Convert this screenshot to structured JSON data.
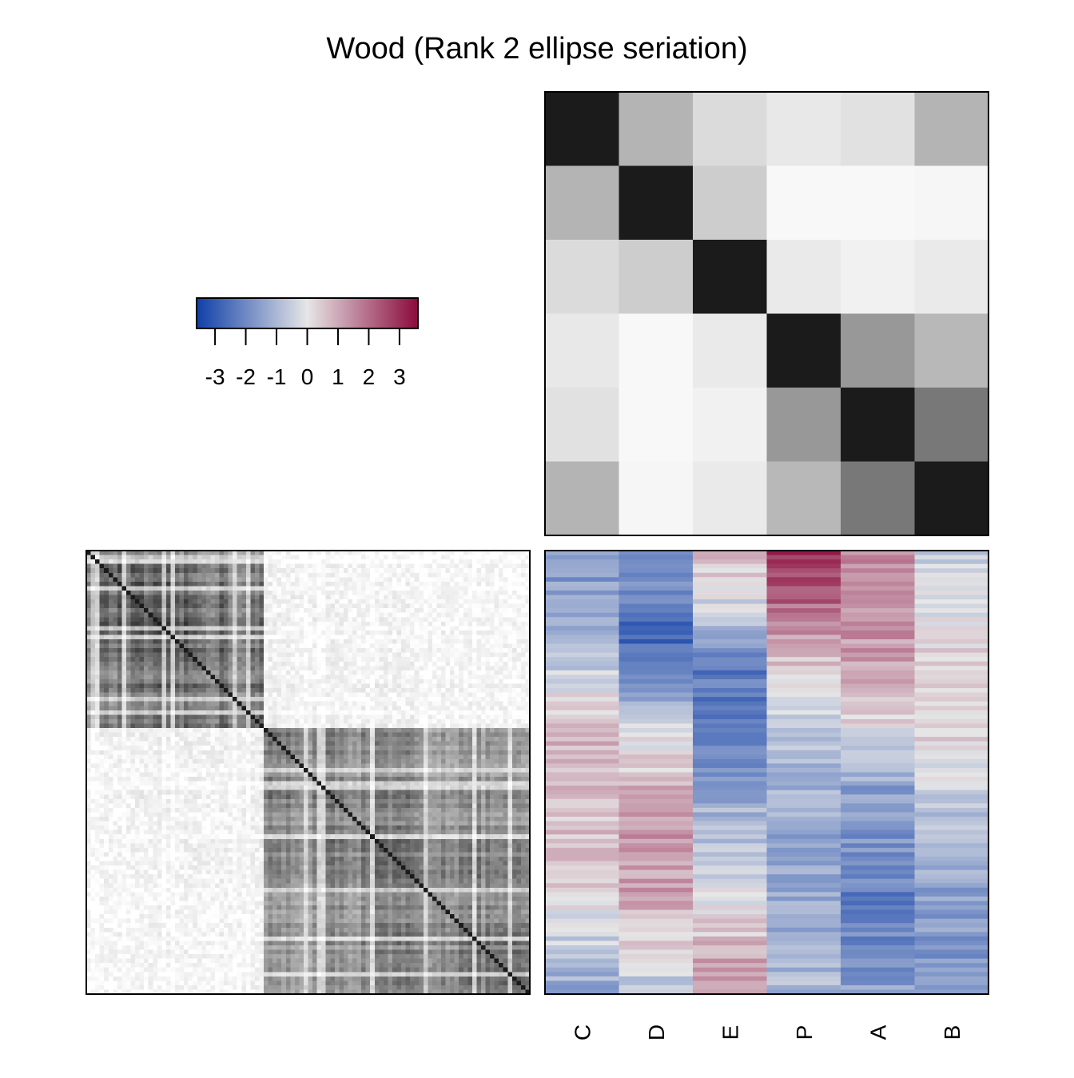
{
  "chart_data": [
    {
      "type": "heatmap",
      "panel": "variable-correlation",
      "title": "Wood (Rank 2 ellipse seriation)",
      "rows": [
        "C",
        "D",
        "E",
        "P",
        "A",
        "B"
      ],
      "columns": [
        "C",
        "D",
        "E",
        "P",
        "A",
        "B"
      ],
      "values": [
        [
          1.0,
          0.33,
          0.16,
          0.1,
          0.13,
          0.33
        ],
        [
          0.33,
          1.0,
          0.22,
          0.03,
          0.03,
          0.04
        ],
        [
          0.16,
          0.22,
          1.0,
          0.09,
          0.06,
          0.09
        ],
        [
          0.1,
          0.03,
          0.09,
          1.0,
          0.45,
          0.31
        ],
        [
          0.13,
          0.03,
          0.06,
          0.45,
          1.0,
          0.59
        ],
        [
          0.33,
          0.04,
          0.09,
          0.31,
          0.59,
          1.0
        ]
      ],
      "colorscale": "grayscale (white low, dark high)"
    },
    {
      "type": "heatmap",
      "panel": "observation-correlation",
      "n": 100,
      "blocks": [
        {
          "start": 0,
          "end": 40,
          "level": 0.7
        },
        {
          "start": 40,
          "end": 100,
          "level": 0.62
        }
      ],
      "off_block_level": 0.08,
      "colorscale": "grayscale (white low, dark high)"
    },
    {
      "type": "heatmap",
      "panel": "standardized-data",
      "columns": [
        "C",
        "D",
        "E",
        "P",
        "A",
        "B"
      ],
      "n_rows": 100,
      "profiles": {
        "C": [
          [
            0,
            -1.8
          ],
          [
            20,
            -1.2
          ],
          [
            40,
            0.9
          ],
          [
            60,
            0.6
          ],
          [
            80,
            0.2
          ],
          [
            100,
            -1.4
          ]
        ],
        "D": [
          [
            0,
            -1.5
          ],
          [
            20,
            -2.8
          ],
          [
            40,
            -0.3
          ],
          [
            60,
            1.3
          ],
          [
            80,
            1.1
          ],
          [
            100,
            -1.0
          ]
        ],
        "E": [
          [
            0,
            0.8
          ],
          [
            15,
            -0.6
          ],
          [
            25,
            -2.4
          ],
          [
            40,
            -2.2
          ],
          [
            60,
            -1.0
          ],
          [
            80,
            0.0
          ],
          [
            100,
            1.6
          ]
        ],
        "P": [
          [
            0,
            3.2
          ],
          [
            15,
            1.8
          ],
          [
            30,
            0.1
          ],
          [
            45,
            -0.8
          ],
          [
            70,
            -1.5
          ],
          [
            100,
            -1.0
          ]
        ],
        "A": [
          [
            0,
            1.5
          ],
          [
            25,
            1.2
          ],
          [
            40,
            0.0
          ],
          [
            55,
            -1.6
          ],
          [
            80,
            -2.2
          ],
          [
            100,
            -1.5
          ]
        ],
        "B": [
          [
            0,
            -0.5
          ],
          [
            30,
            0.6
          ],
          [
            45,
            0.3
          ],
          [
            60,
            -0.8
          ],
          [
            80,
            -1.6
          ],
          [
            100,
            -1.8
          ]
        ]
      },
      "legend": {
        "ticks": [
          -3,
          -2,
          -1,
          0,
          1,
          2,
          3
        ],
        "tick_labels": [
          "-3",
          "-2",
          "-1",
          "0",
          "1",
          "2",
          "3"
        ],
        "range": [
          -3.6,
          3.6
        ],
        "colors": {
          "low": "#103fa8",
          "mid": "#e6e6e6",
          "high": "#8b0a3c"
        }
      }
    }
  ]
}
